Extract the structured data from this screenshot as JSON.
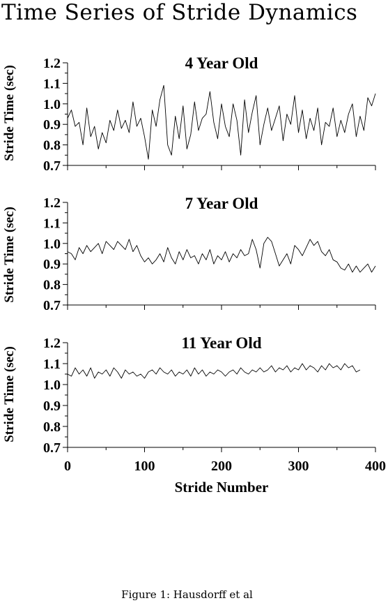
{
  "figure": {
    "title": "Time Series of Stride Dynamics",
    "caption": "Figure 1: Hausdorff et al"
  },
  "colors": {
    "line": "#000000",
    "background": "#ffffff"
  },
  "chart_data": [
    {
      "type": "line",
      "title": "4 Year Old",
      "xlabel": "",
      "ylabel": "Stride Time (sec)",
      "xlim": [
        0,
        400
      ],
      "ylim": [
        0.7,
        1.2
      ],
      "yticks": [
        "0.7",
        "0.8",
        "0.9",
        "1.0",
        "1.1",
        "1.2"
      ],
      "xticks": [],
      "grid": false,
      "series": [
        {
          "x": [
            0,
            5,
            10,
            15,
            20,
            25,
            30,
            35,
            40,
            45,
            50,
            55,
            60,
            65,
            70,
            75,
            80,
            85,
            90,
            95,
            100,
            105,
            110,
            115,
            120,
            125,
            130,
            135,
            140,
            145,
            150,
            155,
            160,
            165,
            170,
            175,
            180,
            185,
            190,
            195,
            200,
            205,
            210,
            215,
            220,
            225,
            230,
            235,
            240,
            245,
            250,
            255,
            260,
            265,
            270,
            275,
            280,
            285,
            290,
            295,
            300,
            305,
            310,
            315,
            320,
            325,
            330,
            335,
            340,
            345,
            350,
            355,
            360,
            365,
            370,
            375,
            380,
            385,
            390,
            395,
            400
          ],
          "y": [
            0.93,
            0.97,
            0.89,
            0.91,
            0.8,
            0.98,
            0.84,
            0.89,
            0.78,
            0.86,
            0.81,
            0.92,
            0.87,
            0.97,
            0.88,
            0.92,
            0.86,
            1.01,
            0.89,
            0.93,
            0.84,
            0.73,
            0.97,
            0.89,
            1.02,
            1.09,
            0.8,
            0.75,
            0.94,
            0.83,
            0.99,
            0.78,
            0.85,
            1.01,
            0.87,
            0.93,
            0.95,
            1.06,
            0.91,
            0.83,
            1.0,
            0.89,
            0.84,
            1.0,
            0.92,
            0.75,
            1.02,
            0.86,
            0.96,
            1.04,
            0.8,
            0.9,
            0.98,
            0.87,
            0.93,
            0.99,
            0.82,
            0.95,
            0.9,
            1.04,
            0.86,
            0.97,
            0.83,
            0.93,
            0.87,
            0.98,
            0.8,
            0.91,
            0.89,
            0.98,
            0.84,
            0.92,
            0.86,
            0.95,
            1.0,
            0.84,
            0.94,
            0.87,
            1.03,
            0.99,
            1.05
          ]
        }
      ]
    },
    {
      "type": "line",
      "title": "7 Year Old",
      "xlabel": "",
      "ylabel": "Stride Time (sec)",
      "xlim": [
        0,
        400
      ],
      "ylim": [
        0.7,
        1.2
      ],
      "yticks": [
        "0.7",
        "0.8",
        "0.9",
        "1.0",
        "1.1",
        "1.2"
      ],
      "xticks": [],
      "grid": false,
      "series": [
        {
          "x": [
            0,
            5,
            10,
            15,
            20,
            25,
            30,
            35,
            40,
            45,
            50,
            55,
            60,
            65,
            70,
            75,
            80,
            85,
            90,
            95,
            100,
            105,
            110,
            115,
            120,
            125,
            130,
            135,
            140,
            145,
            150,
            155,
            160,
            165,
            170,
            175,
            180,
            185,
            190,
            195,
            200,
            205,
            210,
            215,
            220,
            225,
            230,
            235,
            240,
            245,
            250,
            255,
            260,
            265,
            270,
            275,
            280,
            285,
            290,
            295,
            300,
            305,
            310,
            315,
            320,
            325,
            330,
            335,
            340,
            345,
            350,
            355,
            360,
            365,
            370,
            375,
            380,
            385,
            390,
            395,
            400
          ],
          "y": [
            0.96,
            0.95,
            0.92,
            0.98,
            0.95,
            0.99,
            0.96,
            0.98,
            1.0,
            0.95,
            1.01,
            0.99,
            0.97,
            1.01,
            0.99,
            0.97,
            1.02,
            0.96,
            0.99,
            0.94,
            0.91,
            0.93,
            0.9,
            0.92,
            0.95,
            0.91,
            0.98,
            0.93,
            0.9,
            0.96,
            0.92,
            0.97,
            0.93,
            0.94,
            0.9,
            0.95,
            0.92,
            0.97,
            0.9,
            0.94,
            0.92,
            0.96,
            0.91,
            0.95,
            0.93,
            0.97,
            0.94,
            0.95,
            1.02,
            0.97,
            0.88,
            1.0,
            1.03,
            1.01,
            0.95,
            0.89,
            0.92,
            0.95,
            0.9,
            0.99,
            0.97,
            0.94,
            0.98,
            1.02,
            0.99,
            1.01,
            0.96,
            0.94,
            0.97,
            0.92,
            0.91,
            0.88,
            0.87,
            0.9,
            0.86,
            0.89,
            0.86,
            0.88,
            0.9,
            0.86,
            0.89
          ]
        }
      ]
    },
    {
      "type": "line",
      "title": "11 Year Old",
      "xlabel": "Stride Number",
      "ylabel": "Stride Time (sec)",
      "xlim": [
        0,
        400
      ],
      "ylim": [
        0.7,
        1.2
      ],
      "yticks": [
        "0.7",
        "0.8",
        "0.9",
        "1.0",
        "1.1",
        "1.2"
      ],
      "xticks": [
        "0",
        "100",
        "200",
        "300",
        "400"
      ],
      "grid": false,
      "series": [
        {
          "x": [
            0,
            5,
            10,
            15,
            20,
            25,
            30,
            35,
            40,
            45,
            50,
            55,
            60,
            65,
            70,
            75,
            80,
            85,
            90,
            95,
            100,
            105,
            110,
            115,
            120,
            125,
            130,
            135,
            140,
            145,
            150,
            155,
            160,
            165,
            170,
            175,
            180,
            185,
            190,
            195,
            200,
            205,
            210,
            215,
            220,
            225,
            230,
            235,
            240,
            245,
            250,
            255,
            260,
            265,
            270,
            275,
            280,
            285,
            290,
            295,
            300,
            305,
            310,
            315,
            320,
            325,
            330,
            335,
            340,
            345,
            350,
            355,
            360,
            365,
            370,
            375,
            380
          ],
          "y": [
            1.05,
            1.04,
            1.08,
            1.05,
            1.07,
            1.04,
            1.08,
            1.03,
            1.06,
            1.05,
            1.07,
            1.04,
            1.08,
            1.06,
            1.03,
            1.07,
            1.05,
            1.06,
            1.04,
            1.05,
            1.03,
            1.06,
            1.07,
            1.05,
            1.08,
            1.06,
            1.05,
            1.07,
            1.04,
            1.06,
            1.05,
            1.07,
            1.04,
            1.08,
            1.05,
            1.07,
            1.04,
            1.06,
            1.05,
            1.07,
            1.06,
            1.04,
            1.06,
            1.07,
            1.05,
            1.08,
            1.06,
            1.05,
            1.07,
            1.06,
            1.08,
            1.06,
            1.07,
            1.09,
            1.06,
            1.08,
            1.07,
            1.09,
            1.06,
            1.08,
            1.07,
            1.1,
            1.07,
            1.09,
            1.08,
            1.06,
            1.09,
            1.07,
            1.1,
            1.08,
            1.09,
            1.07,
            1.1,
            1.08,
            1.09,
            1.06,
            1.07
          ]
        }
      ]
    }
  ]
}
